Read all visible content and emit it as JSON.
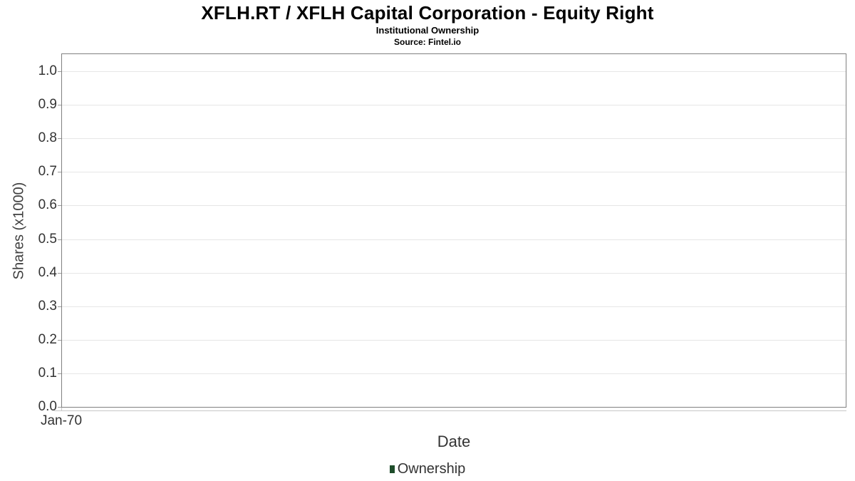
{
  "chart_data": {
    "type": "column",
    "title": "XFLH.RT / XFLH Capital Corporation - Equity Right",
    "subtitle": "Institutional Ownership",
    "source": "Source: Fintel.io",
    "xlabel": "Date",
    "ylabel": "Shares (x1000)",
    "x_ticks": [
      "Jan-70"
    ],
    "y_ticks": [
      "0.0",
      "0.1",
      "0.2",
      "0.3",
      "0.4",
      "0.5",
      "0.6",
      "0.7",
      "0.8",
      "0.9",
      "1.0"
    ],
    "ylim": [
      0,
      1.05
    ],
    "grid": "horizontal-only",
    "legend_position": "bottom-center",
    "legend": [
      {
        "label": "Ownership",
        "color": "#1e4d2b"
      }
    ],
    "series": [
      {
        "name": "Ownership",
        "values": []
      }
    ],
    "colors": {
      "grid": "#e6e6e6",
      "plot_border": "#808080",
      "axis_line": "#c8c8c8",
      "tick": "#999999",
      "text": "#333333",
      "title_text": "#000000"
    }
  }
}
